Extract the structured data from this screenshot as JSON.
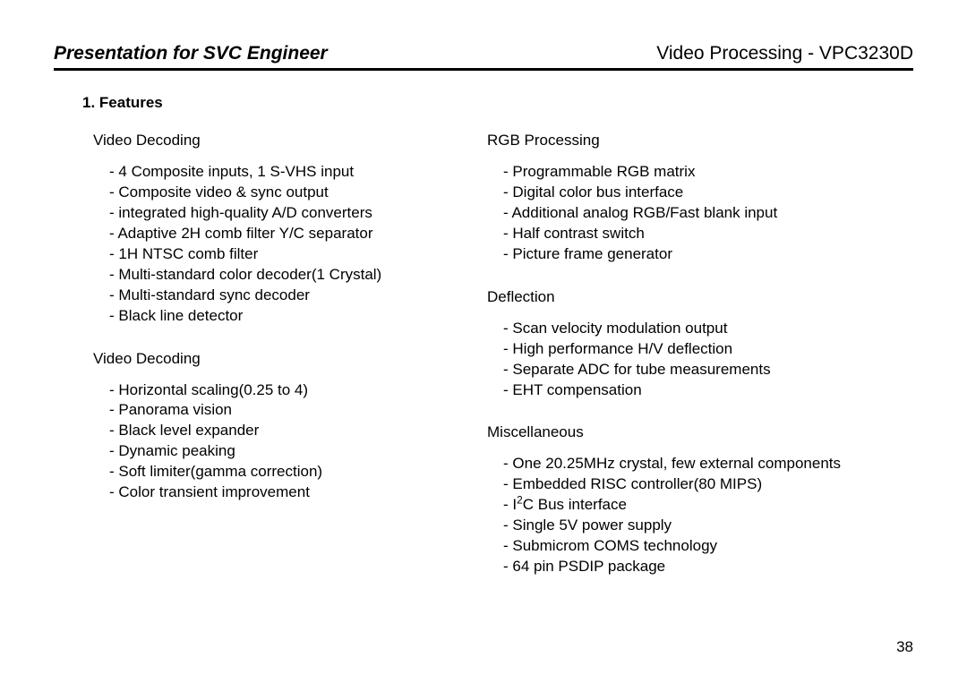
{
  "header": {
    "left": "Presentation for SVC Engineer",
    "right": "Video Processing - VPC3230D"
  },
  "section_title": "1. Features",
  "page_number": "38",
  "left_column": [
    {
      "title": "Video Decoding",
      "items": [
        "4 Composite inputs, 1 S-VHS input",
        "Composite video & sync output",
        "integrated high-quality A/D converters",
        "Adaptive 2H comb filter Y/C separator",
        "1H NTSC comb filter",
        "Multi-standard color decoder(1 Crystal)",
        "Multi-standard sync decoder",
        "Black line detector"
      ]
    },
    {
      "title": "Video Decoding",
      "items": [
        "Horizontal scaling(0.25 to 4)",
        "Panorama vision",
        "Black level expander",
        "Dynamic peaking",
        "Soft limiter(gamma correction)",
        "Color transient improvement"
      ]
    }
  ],
  "right_column": [
    {
      "title": "RGB Processing",
      "items": [
        "Programmable RGB matrix",
        "Digital color bus interface",
        "Additional analog RGB/Fast blank input",
        "Half contrast switch",
        "Picture frame generator"
      ]
    },
    {
      "title": "Deflection",
      "items": [
        "Scan velocity modulation output",
        "High performance H/V deflection",
        "Separate ADC for tube measurements",
        "EHT compensation"
      ]
    },
    {
      "title": "Miscellaneous",
      "items": [
        "One 20.25MHz crystal, few external components",
        "Embedded RISC controller(80 MIPS)",
        "I2C Bus interface",
        "Single 5V power supply",
        "Submicrom COMS technology",
        "64 pin PSDIP package"
      ]
    }
  ]
}
